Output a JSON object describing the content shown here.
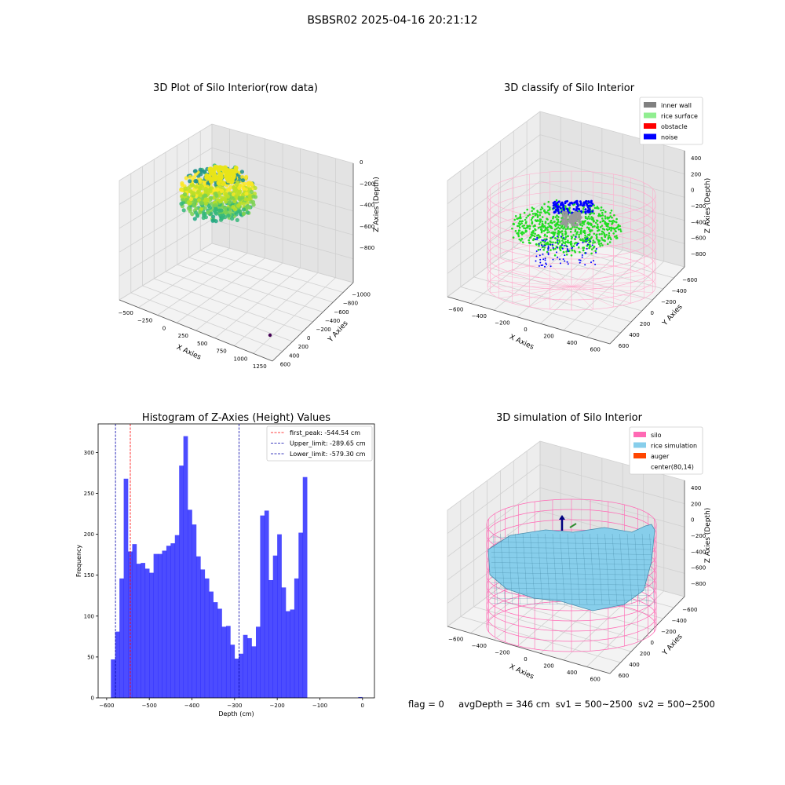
{
  "figure": {
    "title": "BSBSR02 2025-04-16 20:21:12",
    "status": {
      "flag": "flag = 0",
      "avg_depth": "avgDepth = 346 cm",
      "sv1": "sv1 = 500~2500",
      "sv2": "sv2 = 500~2500"
    }
  },
  "chart_data": [
    {
      "type": "scatter3d",
      "title": "3D Plot of Silo Interior(row data)",
      "xlabel": "X Axies",
      "ylabel": "Y Axies",
      "zlabel": "Z Axies (Depth)",
      "xticks": [
        "−500",
        "−250",
        "0",
        "250",
        "500",
        "750",
        "1000",
        "1250"
      ],
      "yticks": [
        "−1000",
        "−800",
        "−600",
        "−400",
        "−200",
        "0",
        "200",
        "400",
        "600"
      ],
      "zticks": [
        "−800",
        "−600",
        "−400",
        "−200",
        "0"
      ],
      "xlim": [
        -550,
        1350
      ],
      "ylim": [
        -1050,
        650
      ],
      "zlim": [
        -950,
        50
      ],
      "colormap": "viridis",
      "grid": true
    },
    {
      "type": "scatter3d",
      "title": "3D classify of Silo Interior",
      "xlabel": "X Axies",
      "ylabel": "Y Axies",
      "zlabel": "Z Axies (Depth)",
      "xticks": [
        "−600",
        "−400",
        "−200",
        "0",
        "200",
        "400",
        "600"
      ],
      "yticks": [
        "−600",
        "−400",
        "−200",
        "0",
        "200",
        "400",
        "600"
      ],
      "zticks": [
        "−800",
        "−600",
        "−400",
        "−200",
        "0",
        "200",
        "400"
      ],
      "legend": [
        {
          "name": "inner wall",
          "color": "#808080"
        },
        {
          "name": "rice surface",
          "color": "#90ee90"
        },
        {
          "name": "obstacle",
          "color": "#ff0000"
        },
        {
          "name": "noise",
          "color": "#0000ff"
        }
      ],
      "legend_position": "top-right",
      "cylinder_color": "#ffaacc",
      "grid": true
    },
    {
      "type": "bar",
      "title": "Histogram of Z-Axies (Height) Values",
      "xlabel": "Depth (cm)",
      "ylabel": "Frequency",
      "xlim": [
        -620,
        28
      ],
      "ylim": [
        0,
        335
      ],
      "xticks": [
        -600,
        -500,
        -400,
        -300,
        -200,
        -100,
        0
      ],
      "yticks": [
        0,
        50,
        100,
        150,
        200,
        250,
        300
      ],
      "bin_width": 10,
      "bin_start": -590,
      "color": "#0000ff",
      "values": [
        47,
        81,
        146,
        268,
        179,
        188,
        164,
        165,
        158,
        153,
        176,
        176,
        180,
        186,
        189,
        199,
        284,
        320,
        230,
        212,
        173,
        157,
        146,
        130,
        117,
        109,
        87,
        88,
        65,
        48,
        54,
        77,
        73,
        63,
        87,
        223,
        229,
        144,
        174,
        200,
        135,
        106,
        108,
        146,
        202,
        270
      ],
      "extra_bins": [
        {
          "x": -10,
          "value": 1
        }
      ],
      "vlines": [
        {
          "name": "first_peak: -544.54 cm",
          "x": -544.54,
          "color": "#ff0000"
        },
        {
          "name": "Upper_limit: -289.65 cm",
          "x": -289.65,
          "color": "#0000aa"
        },
        {
          "name": "Lower_limit: -579.30 cm",
          "x": -579.3,
          "color": "#0000aa"
        }
      ],
      "legend_position": "top-right"
    },
    {
      "type": "surface3d",
      "title": "3D simulation of Silo Interior",
      "xlabel": "X Axies",
      "ylabel": "Y Axies",
      "zlabel": "Z Axies (Depth)",
      "xticks": [
        "−600",
        "−400",
        "−200",
        "0",
        "200",
        "400",
        "600"
      ],
      "yticks": [
        "−600",
        "−400",
        "−200",
        "0",
        "200",
        "400",
        "600"
      ],
      "zticks": [
        "−800",
        "−600",
        "−400",
        "−200",
        "0",
        "200",
        "400"
      ],
      "legend": [
        {
          "name": "silo",
          "color": "#ff69b4"
        },
        {
          "name": "rice simulation",
          "color": "#87ceeb"
        },
        {
          "name": "auger",
          "color": "#ff4500"
        },
        {
          "name": "center(80,14)",
          "color": "#ffffff"
        }
      ],
      "legend_position": "top-right",
      "grid": true
    }
  ]
}
